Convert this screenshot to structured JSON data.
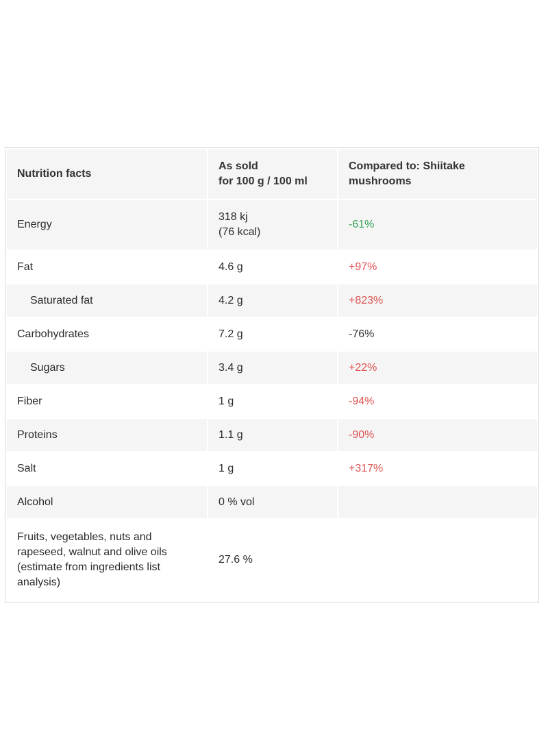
{
  "table": {
    "headers": {
      "nutrient": "Nutrition facts",
      "as_sold_line1": "As sold",
      "as_sold_line2": "for 100 g / 100 ml",
      "compared": "Compared to: Shiitake mushrooms"
    },
    "rows": [
      {
        "label": "Energy",
        "value_line1": "318 kj",
        "value_line2": "(76 kcal)",
        "compare": "-61%",
        "compare_color": "#2e9e4f"
      },
      {
        "label": "Fat",
        "value": "4.6 g",
        "compare": "+97%",
        "compare_color": "#e05252"
      },
      {
        "label": "Saturated fat",
        "value": "4.2 g",
        "compare": "+823%",
        "compare_color": "#e05252"
      },
      {
        "label": "Carbohydrates",
        "value": "7.2 g",
        "compare": "-76%",
        "compare_color": "#333333"
      },
      {
        "label": "Sugars",
        "value": "3.4 g",
        "compare": "+22%",
        "compare_color": "#e05252"
      },
      {
        "label": "Fiber",
        "value": "1 g",
        "compare": "-94%",
        "compare_color": "#e05252"
      },
      {
        "label": "Proteins",
        "value": "1.1 g",
        "compare": "-90%",
        "compare_color": "#e05252"
      },
      {
        "label": "Salt",
        "value": "1 g",
        "compare": "+317%",
        "compare_color": "#e05252"
      },
      {
        "label": "Alcohol",
        "value": "0 % vol",
        "compare": ""
      },
      {
        "label": "Fruits, vegetables, nuts and rapeseed, walnut and olive oils (estimate from ingredients list analysis)",
        "value": "27.6 %",
        "compare": ""
      }
    ]
  }
}
